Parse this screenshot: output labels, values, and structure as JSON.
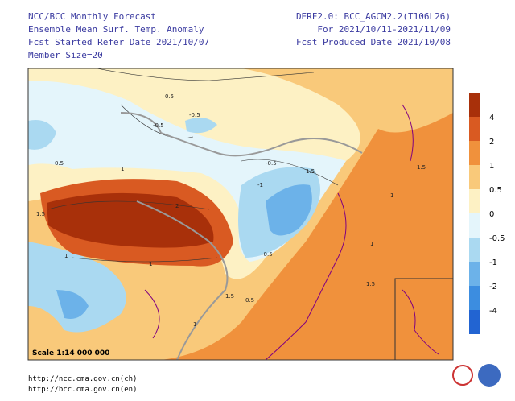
{
  "header": {
    "left": [
      "NCC/BCC Monthly Forecast",
      "Ensemble Mean Surf. Temp. Anomaly",
      "Fcst Started Refer Date 2021/10/07",
      "Member Size=20"
    ],
    "right": [
      "DERF2.0: BCC_AGCM2.2(T106L26)",
      "For 2021/10/11-2021/11/09",
      "Fcst Produced Date 2021/10/08"
    ]
  },
  "map": {
    "scale": "Scale 1:14 000 000",
    "contour_labels": [
      "0.5",
      "-0.5",
      "0.5",
      "1",
      "1.5",
      "1",
      "-0.5",
      "-1",
      "1.5",
      "-0.5",
      "2",
      "1",
      "1.5",
      "-0.5",
      "1",
      "1.5",
      "1",
      "0.5",
      "1.5",
      "1"
    ]
  },
  "colorbar": {
    "labels": [
      4,
      2,
      1,
      0.5,
      0,
      -0.5,
      -1,
      -2,
      -4
    ],
    "colors": [
      "#a8300a",
      "#d95a22",
      "#f0913c",
      "#f9c97a",
      "#fdf1c4",
      "#e4f5fb",
      "#aad9f1",
      "#6cb2e9",
      "#3c8de0",
      "#2264d2"
    ]
  },
  "footer": {
    "urls": [
      "http://ncc.cma.gov.cn(ch)",
      "http://bcc.cma.gov.cn(en)"
    ]
  }
}
